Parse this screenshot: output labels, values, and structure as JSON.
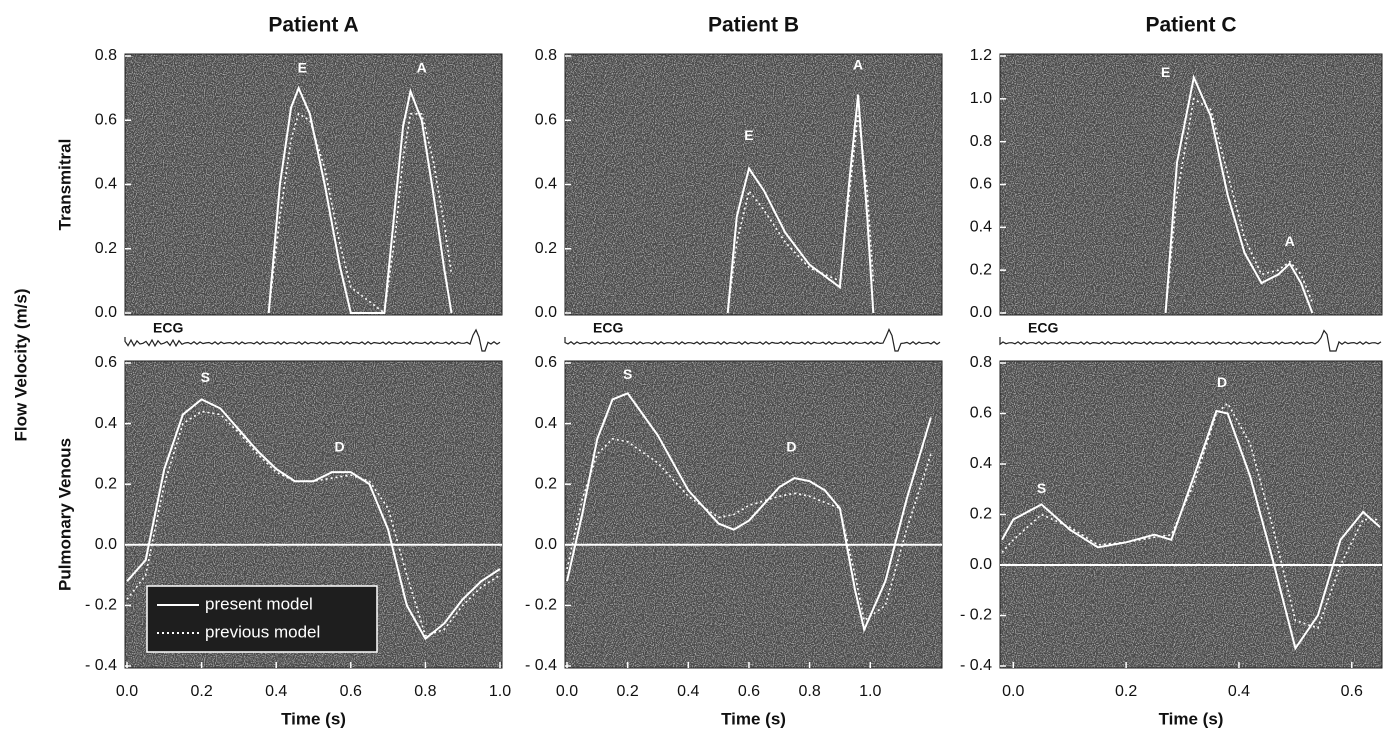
{
  "figure": {
    "ylabel": "Flow Velocity (m/s)"
  },
  "chart_data": [
    {
      "type": "line",
      "title": "Patient A",
      "ylabel": "Transmitral",
      "ecg_label": "ECG",
      "xlim": [
        0,
        1.0
      ],
      "ylim": [
        0,
        0.8
      ],
      "yticks": [
        {
          "value": 0,
          "label": "0.0"
        },
        0.2,
        0.4,
        0.6,
        0.8
      ],
      "x": [
        0.38,
        0.41,
        0.44,
        0.46,
        0.49,
        0.53,
        0.57,
        0.6,
        0.69,
        0.72,
        0.74,
        0.76,
        0.79,
        0.82,
        0.85,
        0.87
      ],
      "series": [
        {
          "color": "#ffffff",
          "style": "solid",
          "values": [
            0,
            0.4,
            0.64,
            0.7,
            0.62,
            0.4,
            0.15,
            0,
            0,
            0.35,
            0.58,
            0.69,
            0.6,
            0.38,
            0.14,
            0
          ]
        },
        {
          "color": "#ffffff",
          "style": "dotted",
          "values": [
            0,
            0.3,
            0.54,
            0.62,
            0.6,
            0.45,
            0.22,
            0.08,
            0,
            0.25,
            0.48,
            0.62,
            0.62,
            0.48,
            0.28,
            0.12
          ]
        }
      ],
      "annotations": [
        {
          "text": "E",
          "x": 0.47,
          "y": 0.76
        },
        {
          "text": "A",
          "x": 0.79,
          "y": 0.76
        }
      ]
    },
    {
      "type": "line",
      "title": "Patient B",
      "ecg_label": "ECG",
      "xlim": [
        0,
        1.23
      ],
      "ylim": [
        0,
        0.8
      ],
      "yticks": [
        {
          "value": 0,
          "label": "0.0"
        },
        0.2,
        0.4,
        0.6,
        0.8
      ],
      "x": [
        0.53,
        0.56,
        0.6,
        0.65,
        0.72,
        0.8,
        0.9,
        0.93,
        0.96,
        0.99,
        1.01
      ],
      "series": [
        {
          "color": "#ffffff",
          "style": "solid",
          "values": [
            0,
            0.3,
            0.45,
            0.38,
            0.25,
            0.15,
            0.08,
            0.4,
            0.68,
            0.3,
            0
          ]
        },
        {
          "color": "#ffffff",
          "style": "dotted",
          "values": [
            0,
            0.22,
            0.38,
            0.32,
            0.22,
            0.14,
            0.1,
            0.36,
            0.62,
            0.38,
            0.1
          ]
        }
      ],
      "annotations": [
        {
          "text": "E",
          "x": 0.6,
          "y": 0.55
        },
        {
          "text": "A",
          "x": 0.96,
          "y": 0.77
        }
      ]
    },
    {
      "type": "line",
      "title": "Patient C",
      "ecg_label": "ECG",
      "xlim": [
        -0.02,
        0.65
      ],
      "ylim": [
        0,
        1.2
      ],
      "yticks": [
        {
          "value": 0,
          "label": "0.0"
        },
        0.2,
        0.4,
        0.6,
        0.8,
        {
          "value": 1,
          "label": "1.0"
        },
        1.2
      ],
      "x": [
        0.27,
        0.29,
        0.32,
        0.35,
        0.38,
        0.41,
        0.44,
        0.47,
        0.49,
        0.51,
        0.53
      ],
      "series": [
        {
          "color": "#ffffff",
          "style": "solid",
          "values": [
            0,
            0.7,
            1.1,
            0.92,
            0.55,
            0.28,
            0.14,
            0.18,
            0.23,
            0.14,
            0
          ]
        },
        {
          "color": "#ffffff",
          "style": "dotted",
          "values": [
            0,
            0.55,
            1.0,
            0.95,
            0.65,
            0.35,
            0.18,
            0.2,
            0.24,
            0.18,
            0.05
          ]
        }
      ],
      "annotations": [
        {
          "text": "E",
          "x": 0.27,
          "y": 1.12
        },
        {
          "text": "A",
          "x": 0.49,
          "y": 0.33
        }
      ]
    },
    {
      "type": "line",
      "ylabel": "Pulmonary Venous",
      "xlabel": "Time (s)",
      "zero_line": true,
      "legend": "lower left",
      "xlim": [
        0,
        1.0
      ],
      "ylim": [
        -0.4,
        0.6
      ],
      "xticks": [
        {
          "value": 0,
          "label": "0.0"
        },
        0.2,
        0.4,
        0.6,
        0.8,
        {
          "value": 1,
          "label": "1.0"
        }
      ],
      "yticks": [
        {
          "value": -0.4,
          "label": "- 0.4"
        },
        {
          "value": -0.2,
          "label": "- 0.2"
        },
        {
          "value": 0,
          "label": "0.0"
        },
        0.2,
        0.4,
        0.6
      ],
      "x": [
        0.0,
        0.05,
        0.1,
        0.15,
        0.2,
        0.25,
        0.3,
        0.35,
        0.4,
        0.45,
        0.5,
        0.55,
        0.6,
        0.65,
        0.7,
        0.75,
        0.8,
        0.85,
        0.9,
        0.95,
        1.0
      ],
      "series": [
        {
          "name": "present model",
          "color": "#ffffff",
          "style": "solid",
          "values": [
            -0.12,
            -0.05,
            0.25,
            0.43,
            0.48,
            0.45,
            0.38,
            0.31,
            0.25,
            0.21,
            0.21,
            0.24,
            0.24,
            0.2,
            0.05,
            -0.2,
            -0.31,
            -0.26,
            -0.18,
            -0.12,
            -0.08
          ]
        },
        {
          "name": "previous model",
          "color": "#ffffff",
          "style": "dotted",
          "values": [
            -0.18,
            -0.1,
            0.2,
            0.4,
            0.44,
            0.43,
            0.37,
            0.3,
            0.24,
            0.21,
            0.21,
            0.22,
            0.23,
            0.21,
            0.12,
            -0.1,
            -0.3,
            -0.28,
            -0.2,
            -0.14,
            -0.1
          ]
        }
      ],
      "annotations": [
        {
          "text": "S",
          "x": 0.21,
          "y": 0.55
        },
        {
          "text": "D",
          "x": 0.57,
          "y": 0.32
        }
      ]
    },
    {
      "type": "line",
      "xlabel": "Time (s)",
      "zero_line": true,
      "xlim": [
        0,
        1.23
      ],
      "ylim": [
        -0.4,
        0.6
      ],
      "xticks": [
        {
          "value": 0,
          "label": "0.0"
        },
        0.2,
        0.4,
        0.6,
        0.8,
        {
          "value": 1,
          "label": "1.0"
        }
      ],
      "yticks": [
        {
          "value": -0.4,
          "label": "- 0.4"
        },
        {
          "value": -0.2,
          "label": "- 0.2"
        },
        {
          "value": 0,
          "label": "0.0"
        },
        0.2,
        0.4,
        0.6
      ],
      "x": [
        0.0,
        0.05,
        0.1,
        0.15,
        0.2,
        0.3,
        0.4,
        0.5,
        0.55,
        0.6,
        0.7,
        0.75,
        0.8,
        0.85,
        0.9,
        0.95,
        0.98,
        1.05,
        1.12,
        1.2
      ],
      "series": [
        {
          "color": "#ffffff",
          "style": "solid",
          "values": [
            -0.12,
            0.1,
            0.35,
            0.48,
            0.5,
            0.36,
            0.18,
            0.07,
            0.05,
            0.08,
            0.19,
            0.22,
            0.21,
            0.18,
            0.12,
            -0.15,
            -0.28,
            -0.12,
            0.15,
            0.42
          ]
        },
        {
          "color": "#ffffff",
          "style": "dotted",
          "values": [
            -0.08,
            0.15,
            0.3,
            0.35,
            0.34,
            0.27,
            0.16,
            0.09,
            0.1,
            0.13,
            0.16,
            0.17,
            0.16,
            0.14,
            0.12,
            -0.1,
            -0.25,
            -0.2,
            0.05,
            0.3
          ]
        }
      ],
      "annotations": [
        {
          "text": "S",
          "x": 0.2,
          "y": 0.56
        },
        {
          "text": "D",
          "x": 0.74,
          "y": 0.32
        }
      ]
    },
    {
      "type": "line",
      "xlabel": "Time (s)",
      "zero_line": true,
      "xlim": [
        -0.02,
        0.65
      ],
      "ylim": [
        -0.4,
        0.8
      ],
      "xticks": [
        {
          "value": 0,
          "label": "0.0"
        },
        0.2,
        0.4,
        0.6
      ],
      "yticks": [
        {
          "value": -0.4,
          "label": "- 0.4"
        },
        {
          "value": -0.2,
          "label": "- 0.2"
        },
        {
          "value": 0,
          "label": "0.0"
        },
        0.2,
        0.4,
        0.6,
        0.8
      ],
      "x": [
        -0.02,
        0.0,
        0.05,
        0.1,
        0.15,
        0.2,
        0.25,
        0.28,
        0.32,
        0.36,
        0.38,
        0.42,
        0.46,
        0.5,
        0.54,
        0.58,
        0.62,
        0.65
      ],
      "series": [
        {
          "color": "#ffffff",
          "style": "solid",
          "values": [
            0.1,
            0.18,
            0.24,
            0.14,
            0.07,
            0.09,
            0.12,
            0.1,
            0.35,
            0.61,
            0.6,
            0.35,
            0.02,
            -0.33,
            -0.2,
            0.1,
            0.21,
            0.15
          ]
        },
        {
          "color": "#ffffff",
          "style": "dotted",
          "values": [
            0.05,
            0.1,
            0.2,
            0.15,
            0.08,
            0.09,
            0.11,
            0.12,
            0.32,
            0.6,
            0.64,
            0.48,
            0.15,
            -0.22,
            -0.25,
            0.0,
            0.18,
            0.18
          ]
        }
      ],
      "annotations": [
        {
          "text": "S",
          "x": 0.05,
          "y": 0.3
        },
        {
          "text": "D",
          "x": 0.37,
          "y": 0.72
        }
      ]
    }
  ]
}
